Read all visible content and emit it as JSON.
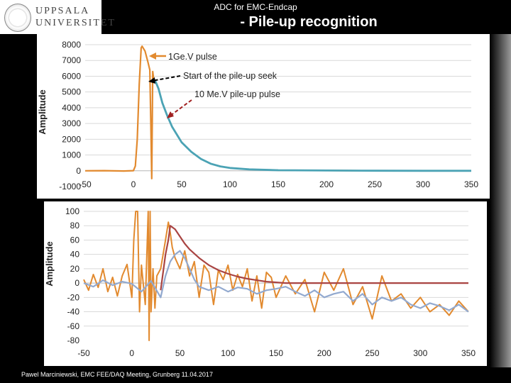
{
  "header": {
    "subtitle": "ADC for EMC-Endcap",
    "title": "- Pile-up recognition",
    "logo_line1": "UPPSALA",
    "logo_line2": "UNIVERSITET"
  },
  "footer": {
    "text": "Pawel Marciniewski, EMC FEE/DAQ Meeting, Grunberg 11.04.2017"
  },
  "colors": {
    "raw_pulse": "#E28A2F",
    "fit_pulse": "#4BA3B5",
    "baseline": "#A94442",
    "filtered": "#92A9CF"
  },
  "chart_data": [
    {
      "type": "line",
      "ylabel": "Amplitude",
      "ylim": [
        -1000,
        8000
      ],
      "xlim": [
        -50,
        350
      ],
      "yticks": [
        8000,
        7000,
        6000,
        5000,
        4000,
        3000,
        2000,
        1000,
        0,
        -1000
      ],
      "xticks": [
        -50,
        0,
        50,
        100,
        150,
        200,
        250,
        300,
        350
      ],
      "annotations": [
        {
          "text": "1Ge.V pulse"
        },
        {
          "text": "Start of the pile-up seek"
        },
        {
          "text": "10 Me.V pile-up pulse"
        }
      ],
      "series": [
        {
          "x": [
            -50,
            -30,
            -10,
            0,
            2,
            4,
            6,
            8,
            9,
            12,
            15,
            17,
            18,
            19,
            20,
            21,
            22,
            23,
            26,
            30,
            35,
            40,
            50,
            60,
            70,
            80,
            90,
            100,
            120,
            150,
            200,
            250,
            300,
            350
          ],
          "y": [
            0,
            10,
            -15,
            10,
            300,
            2000,
            5500,
            7800,
            7900,
            7600,
            6900,
            6400,
            3000,
            -500,
            6300,
            5800,
            5700,
            5650,
            5200,
            4300,
            3500,
            2800,
            1800,
            1200,
            750,
            450,
            280,
            180,
            90,
            35,
            15,
            5,
            0,
            0
          ]
        },
        {
          "x": [
            22,
            23,
            26,
            30,
            35,
            40,
            50,
            60,
            70,
            80,
            90,
            100,
            120,
            150,
            200,
            250,
            300,
            350
          ],
          "y": [
            5700,
            5650,
            5200,
            4300,
            3500,
            2800,
            1800,
            1200,
            750,
            450,
            280,
            180,
            90,
            35,
            15,
            5,
            0,
            0
          ]
        }
      ]
    },
    {
      "type": "line",
      "ylabel": "Amplitude",
      "ylim": [
        -80,
        100
      ],
      "xlim": [
        -50,
        350
      ],
      "yticks": [
        100,
        80,
        60,
        40,
        20,
        0,
        -20,
        -40,
        -60,
        -80
      ],
      "xticks": [
        -50,
        0,
        50,
        100,
        150,
        200,
        250,
        300,
        350
      ],
      "series": [
        {
          "x": [
            -50,
            -45,
            -40,
            -35,
            -30,
            -25,
            -20,
            -15,
            -10,
            -5,
            0,
            2,
            4,
            6,
            8,
            10,
            14,
            17,
            18,
            19,
            20,
            22,
            24,
            26,
            30,
            35,
            38,
            40,
            42,
            45,
            50,
            55,
            60,
            65,
            70,
            75,
            80,
            85,
            90,
            95,
            100,
            105,
            110,
            115,
            120,
            125,
            130,
            135,
            140,
            145,
            150,
            160,
            170,
            180,
            190,
            200,
            210,
            220,
            230,
            240,
            250,
            260,
            270,
            280,
            290,
            300,
            310,
            320,
            330,
            340,
            350
          ],
          "y": [
            5,
            -10,
            12,
            -6,
            20,
            -12,
            8,
            -18,
            10,
            26,
            -20,
            60,
            100,
            100,
            -40,
            25,
            -30,
            100,
            -80,
            100,
            -40,
            20,
            -35,
            10,
            20,
            60,
            85,
            70,
            50,
            35,
            20,
            45,
            10,
            30,
            -20,
            25,
            15,
            -30,
            18,
            5,
            25,
            -10,
            12,
            -5,
            20,
            -25,
            10,
            -35,
            15,
            8,
            -20,
            10,
            -15,
            5,
            -40,
            15,
            -10,
            20,
            -30,
            -5,
            -50,
            10,
            -25,
            -15,
            -35,
            -20,
            -40,
            -30,
            -45,
            -25,
            -40
          ]
        },
        {
          "x": [
            30,
            35,
            38,
            40,
            45,
            50,
            55,
            60,
            70,
            80,
            90,
            100,
            110,
            120,
            130,
            140,
            150,
            160,
            180,
            200,
            220,
            250,
            300,
            350
          ],
          "y": [
            -10,
            40,
            60,
            80,
            75,
            65,
            55,
            47,
            35,
            25,
            18,
            13,
            9,
            6,
            4,
            2,
            1,
            0,
            0,
            0,
            0,
            0,
            0,
            0
          ]
        },
        {
          "x": [
            -50,
            -40,
            -30,
            -20,
            -10,
            0,
            10,
            20,
            30,
            35,
            40,
            45,
            50,
            55,
            60,
            65,
            70,
            80,
            90,
            100,
            110,
            120,
            130,
            140,
            150,
            160,
            170,
            180,
            190,
            200,
            210,
            220,
            230,
            240,
            250,
            260,
            270,
            280,
            290,
            300,
            310,
            320,
            330,
            340,
            350
          ],
          "y": [
            0,
            -5,
            4,
            -3,
            2,
            -1,
            -12,
            3,
            -20,
            10,
            30,
            40,
            45,
            35,
            20,
            5,
            -5,
            -10,
            -5,
            -12,
            -6,
            -8,
            -15,
            -10,
            -8,
            -5,
            -12,
            -18,
            -10,
            -20,
            -15,
            -12,
            -25,
            -15,
            -30,
            -20,
            -25,
            -20,
            -30,
            -35,
            -28,
            -32,
            -38,
            -30,
            -40
          ]
        }
      ]
    }
  ]
}
